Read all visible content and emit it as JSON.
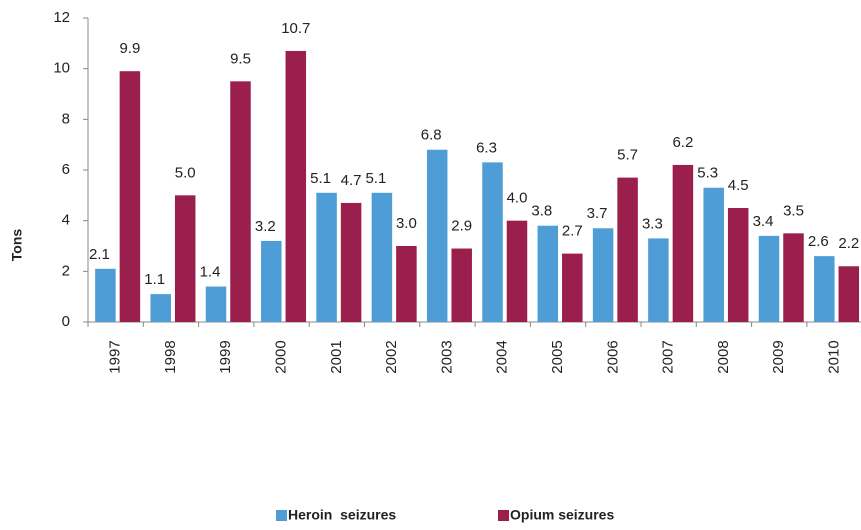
{
  "chart_data": {
    "type": "bar",
    "categories": [
      "1997",
      "1998",
      "1999",
      "2000",
      "2001",
      "2002",
      "2003",
      "2004",
      "2005",
      "2006",
      "2007",
      "2008",
      "2009",
      "2010"
    ],
    "series": [
      {
        "name": "Heroin  seizures",
        "color": "#4f9dd6",
        "values": [
          2.1,
          1.1,
          1.4,
          3.2,
          5.1,
          5.1,
          6.8,
          6.3,
          3.8,
          3.7,
          3.3,
          5.3,
          3.4,
          2.6
        ]
      },
      {
        "name": "Opium seizures",
        "color": "#9b1f4c",
        "values": [
          9.9,
          5.0,
          9.5,
          10.7,
          4.7,
          3.0,
          2.9,
          4.0,
          2.7,
          5.7,
          6.2,
          4.5,
          3.5,
          2.2
        ],
        "value_labels": [
          "9.9",
          "5.0",
          "9.5",
          "10.7",
          "4.7",
          "3.0",
          "2.9",
          "4.0",
          "2.7",
          "5.7",
          "6.2",
          "4.5",
          "3.5",
          "2.2"
        ]
      }
    ],
    "y_label": "Tons",
    "ylim": [
      0,
      12
    ],
    "yticks": [
      0,
      2,
      4,
      6,
      8,
      10,
      12
    ],
    "grid": false,
    "legend": "bottom"
  }
}
